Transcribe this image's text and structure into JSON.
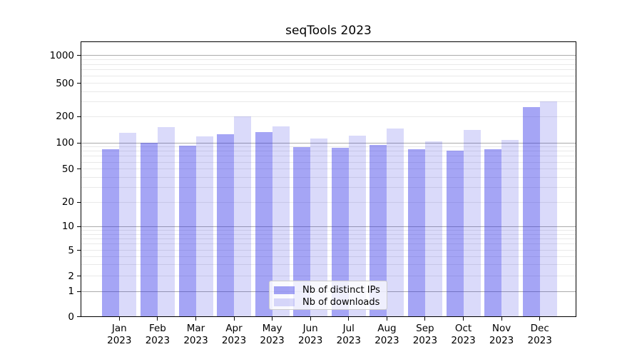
{
  "chart_data": {
    "type": "bar",
    "title": "seqTools 2023",
    "categories": [
      "Jan",
      "Feb",
      "Mar",
      "Apr",
      "May",
      "Jun",
      "Jul",
      "Aug",
      "Sep",
      "Oct",
      "Nov",
      "Dec"
    ],
    "category_year_line": "2023",
    "series": [
      {
        "name": "Nb of distinct IPs",
        "fill": "rgba(41,41,232,0.42)",
        "fill_flat": "#a5a5f4",
        "values": [
          85,
          100,
          92,
          125,
          133,
          90,
          88,
          95,
          84,
          82,
          85,
          260
        ]
      },
      {
        "name": "Nb of downloads",
        "fill": "rgba(24,24,224,0.16)",
        "fill_flat": "#d9d9fa",
        "values": [
          130,
          152,
          118,
          203,
          154,
          113,
          120,
          146,
          103,
          141,
          108,
          305
        ]
      }
    ],
    "y_axis": {
      "scale": "log",
      "ticks": [
        0,
        1,
        2,
        5,
        10,
        20,
        50,
        100,
        200,
        500,
        1000
      ],
      "tick_labels": [
        "0",
        "1",
        "2",
        "5",
        "10",
        "20",
        "50",
        "100",
        "200",
        "500",
        "1000"
      ]
    },
    "legend_position": "lower center",
    "grid": {
      "enabled": true,
      "major_color": "#ababab",
      "minor_color": "#e9e9e9"
    },
    "axis_color": "#000000"
  }
}
